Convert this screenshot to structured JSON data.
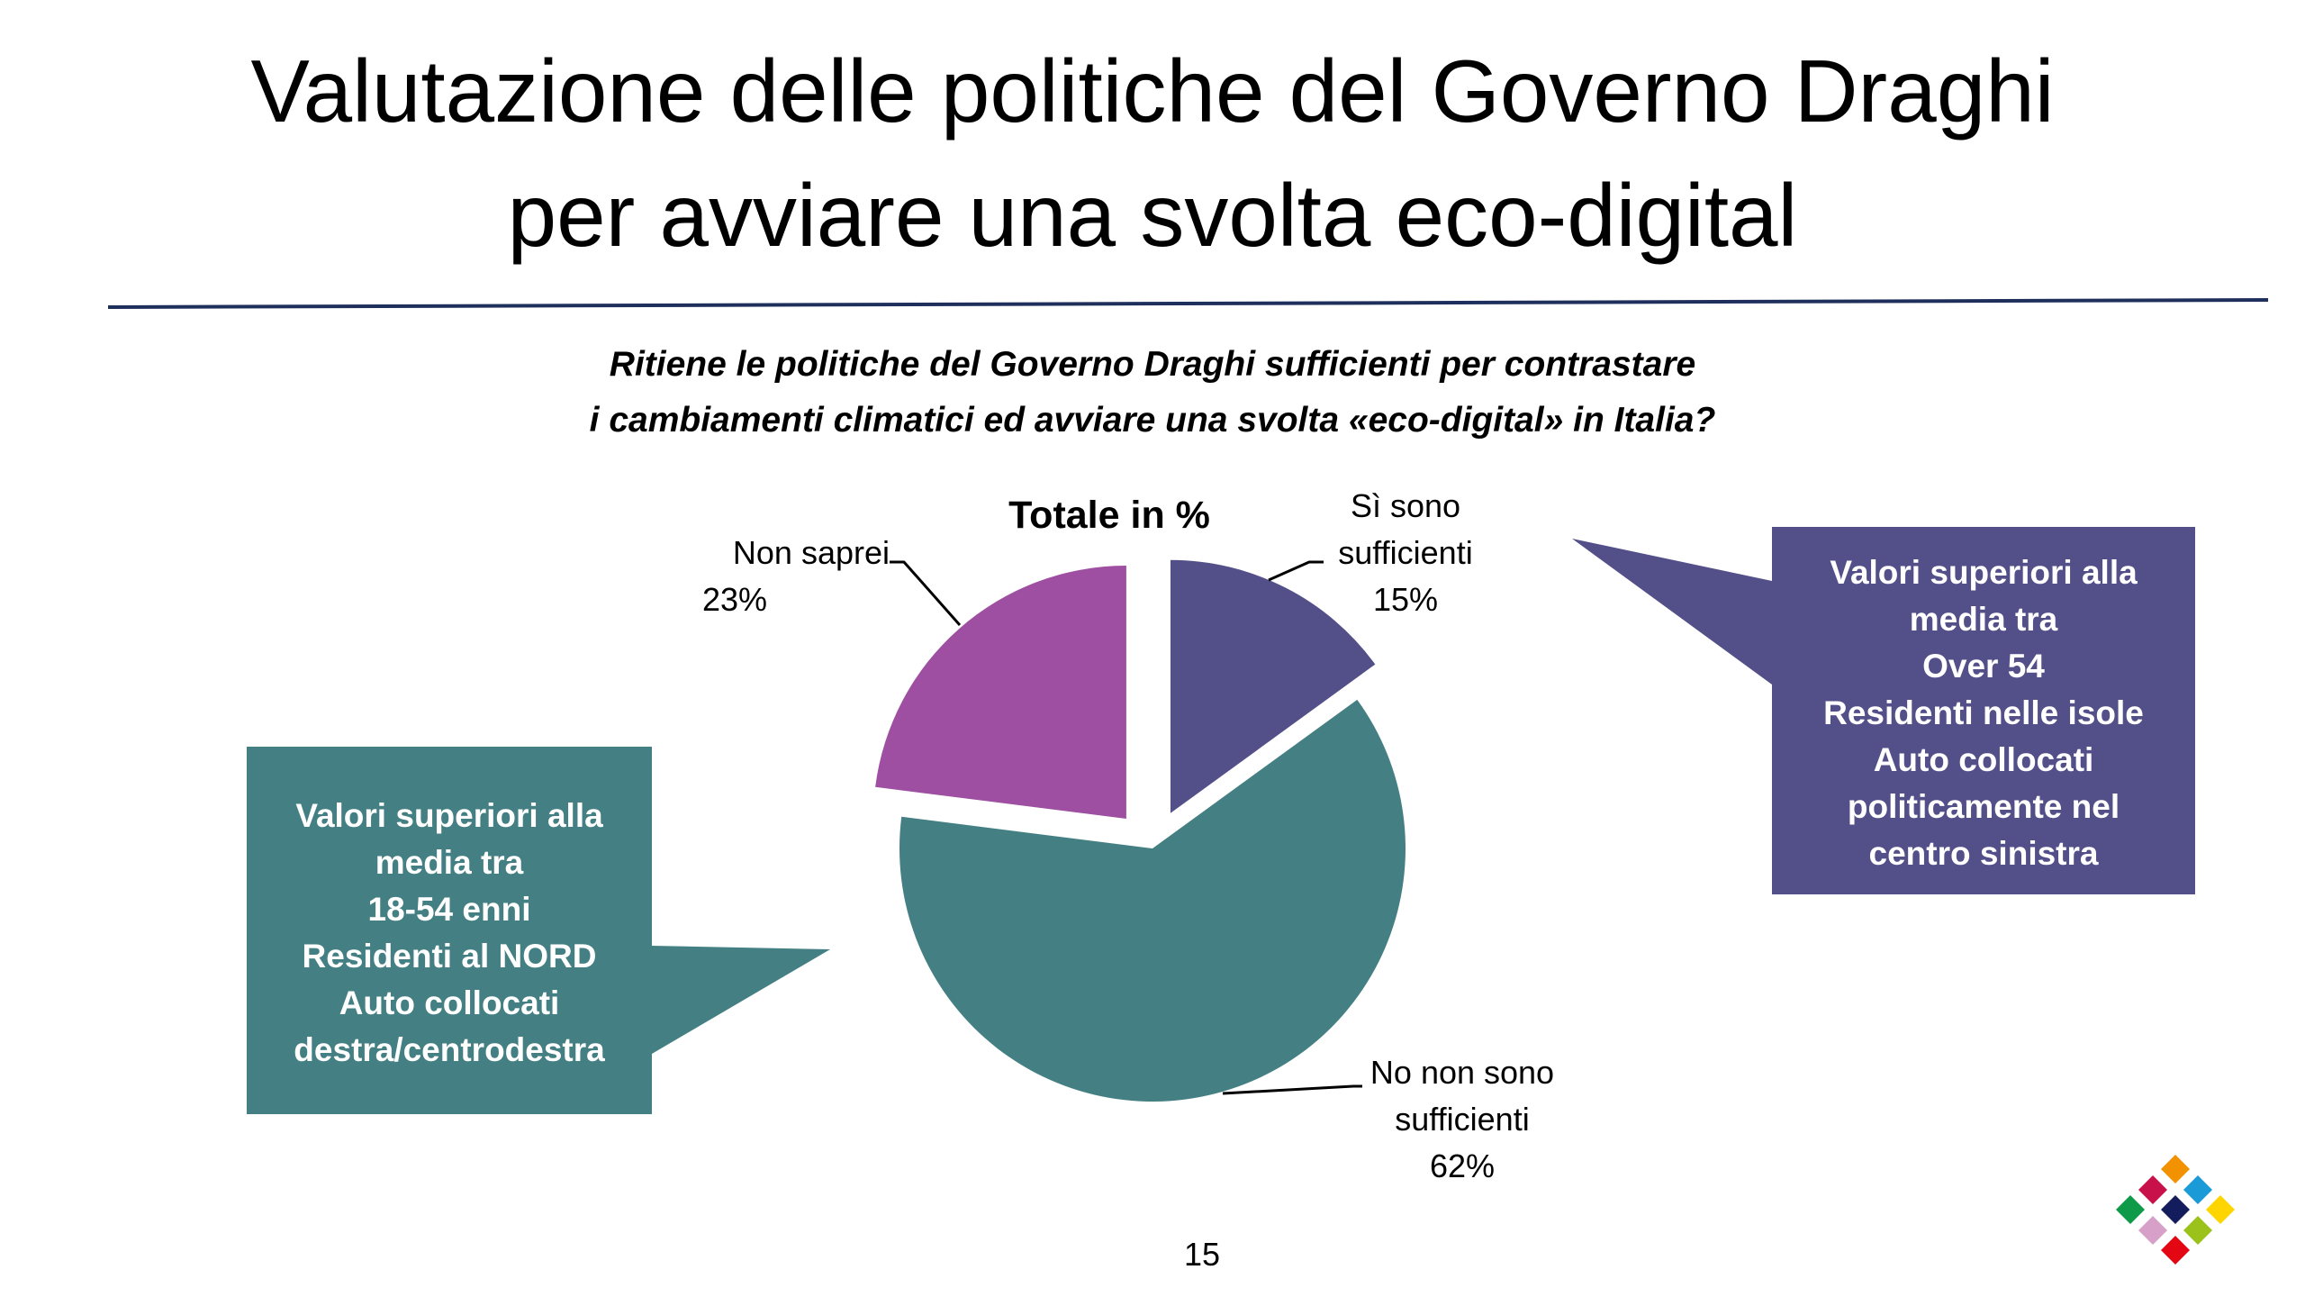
{
  "slide": {
    "title_line1": "Valutazione delle politiche del Governo Draghi",
    "title_line2": "per avviare una svolta eco-digital",
    "subtitle_line1": "Ritiene le politiche del Governo Draghi sufficienti per contrastare",
    "subtitle_line2": "i cambiamenti climatici ed avviare una svolta «eco-digital» in Italia?",
    "page_number": "15",
    "rule_color": "#1F2F5C"
  },
  "chart_data": {
    "type": "pie",
    "title": "Totale in %",
    "unit": "%",
    "slices": [
      {
        "label_line1": "Sì sono",
        "label_line2": "sufficienti",
        "value": 15,
        "value_label": "15%",
        "color": "#534F88",
        "exploded": true
      },
      {
        "label_line1": "No non sono",
        "label_line2": "sufficienti",
        "value": 62,
        "value_label": "62%",
        "color": "#448083",
        "exploded": false
      },
      {
        "label_line1": "Non saprei",
        "label_line2": "",
        "value": 23,
        "value_label": "23%",
        "color": "#9E4FA1",
        "exploded": true
      }
    ]
  },
  "callouts": {
    "left": {
      "color": "#448083",
      "lines": [
        "Valori superiori alla",
        "media tra",
        "18-54 enni",
        "Residenti al NORD",
        "Auto collocati",
        "destra/centrodestra"
      ]
    },
    "right": {
      "color": "#534F88",
      "lines": [
        "Valori superiori alla",
        "media tra",
        "Over 54",
        "Residenti nelle isole",
        "Auto collocati",
        "politicamente nel",
        "centro sinistra"
      ]
    }
  }
}
